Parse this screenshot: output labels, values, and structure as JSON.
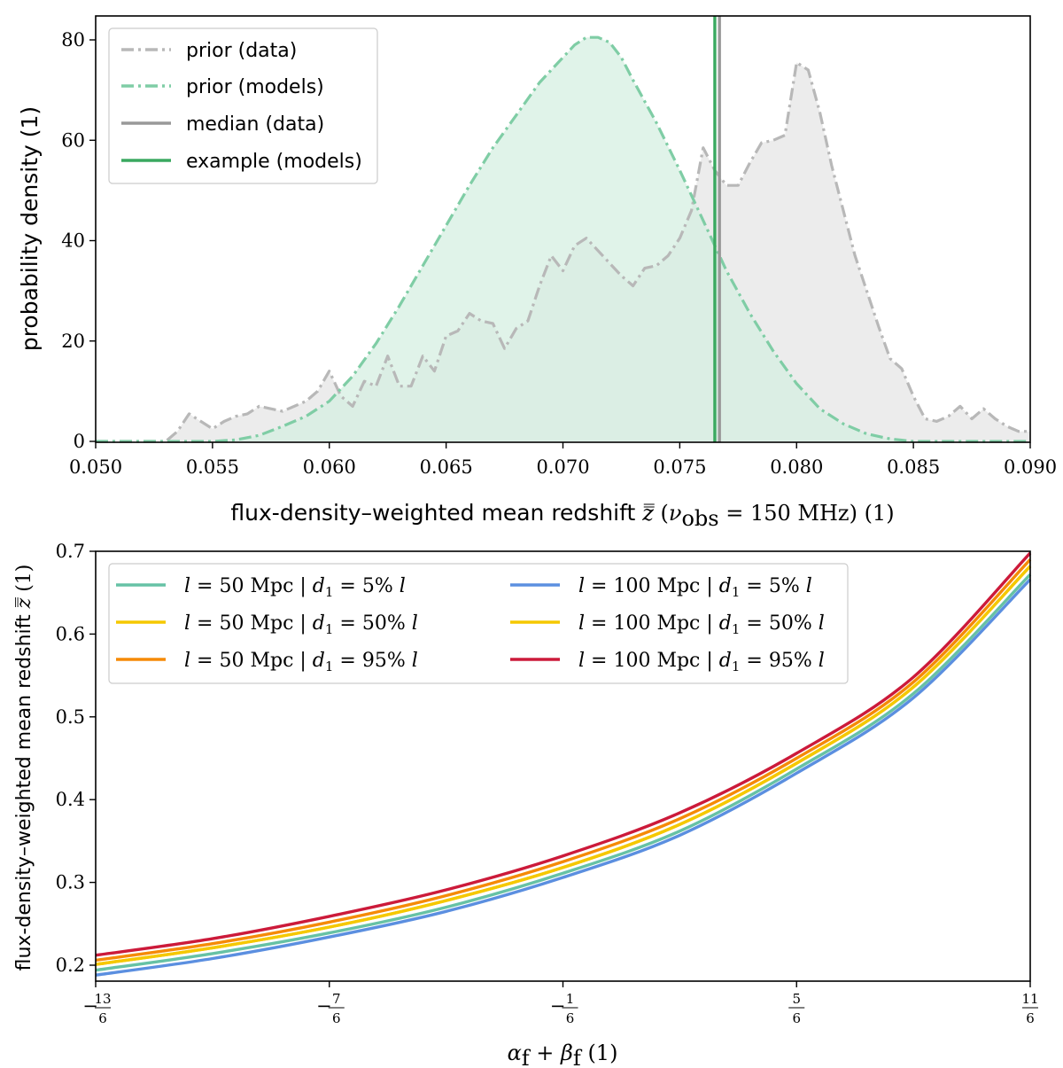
{
  "chart_data": [
    {
      "type": "area",
      "title": "",
      "xlabel": "flux-density–weighted mean redshift z̿ (ν_obs = 150 MHz) (1)",
      "ylabel": "probability density (1)",
      "xlim": [
        0.05,
        0.09
      ],
      "ylim": [
        0,
        85
      ],
      "xticks": [
        0.05,
        0.055,
        0.06,
        0.065,
        0.07,
        0.075,
        0.08,
        0.085,
        0.09
      ],
      "xtick_labels": [
        "0.050",
        "0.055",
        "0.060",
        "0.065",
        "0.070",
        "0.075",
        "0.080",
        "0.085",
        "0.090"
      ],
      "yticks": [
        0,
        20,
        40,
        60,
        80
      ],
      "ytick_labels": [
        "0",
        "20",
        "40",
        "60",
        "80"
      ],
      "legend_position": "top-left",
      "series": [
        {
          "name": "prior (data)",
          "style": "dashdot-filled",
          "color": "#b8b8b8",
          "fill": "#e6e6e6",
          "x": [
            0.05,
            0.053,
            0.0535,
            0.054,
            0.0545,
            0.055,
            0.0555,
            0.056,
            0.0565,
            0.057,
            0.0575,
            0.058,
            0.0585,
            0.059,
            0.0595,
            0.06,
            0.0605,
            0.061,
            0.0615,
            0.062,
            0.0625,
            0.063,
            0.0635,
            0.064,
            0.0645,
            0.065,
            0.0655,
            0.066,
            0.0665,
            0.067,
            0.0675,
            0.068,
            0.0685,
            0.069,
            0.0695,
            0.07,
            0.0705,
            0.071,
            0.0715,
            0.072,
            0.0725,
            0.073,
            0.0735,
            0.074,
            0.0745,
            0.075,
            0.0755,
            0.076,
            0.0765,
            0.077,
            0.0775,
            0.078,
            0.0785,
            0.079,
            0.0795,
            0.08,
            0.0805,
            0.081,
            0.0815,
            0.082,
            0.0825,
            0.083,
            0.0835,
            0.084,
            0.0845,
            0.085,
            0.0855,
            0.086,
            0.0865,
            0.087,
            0.0875,
            0.088,
            0.0885,
            0.089,
            0.0895,
            0.09
          ],
          "y": [
            0,
            0,
            2,
            5.5,
            4,
            2.5,
            4,
            5,
            5.5,
            7,
            6.5,
            6,
            7,
            8,
            10,
            14,
            9,
            7,
            12,
            11,
            17,
            11,
            11,
            17,
            14,
            21,
            22,
            25.5,
            24,
            23.5,
            18.5,
            22.5,
            24,
            31,
            37,
            34,
            39,
            40.5,
            38,
            35.5,
            33,
            31,
            34.5,
            35,
            37,
            40.5,
            46,
            58.5,
            54,
            51,
            51,
            55.5,
            59.5,
            60,
            61,
            75.5,
            74,
            65.5,
            55,
            46,
            37,
            30,
            23,
            16.5,
            14.5,
            9,
            4.5,
            4,
            5,
            7,
            4.5,
            6.5,
            4.5,
            3,
            2,
            2
          ]
        },
        {
          "name": "prior (models)",
          "style": "dashdot-filled",
          "color": "#7fcda5",
          "fill": "#d5efe2",
          "x": [
            0.05,
            0.0525,
            0.055,
            0.056,
            0.057,
            0.058,
            0.059,
            0.06,
            0.061,
            0.062,
            0.063,
            0.064,
            0.065,
            0.066,
            0.067,
            0.068,
            0.069,
            0.07,
            0.0705,
            0.071,
            0.0715,
            0.072,
            0.0725,
            0.073,
            0.074,
            0.075,
            0.076,
            0.077,
            0.078,
            0.079,
            0.08,
            0.081,
            0.082,
            0.083,
            0.084,
            0.085,
            0.086,
            0.0875,
            0.09
          ],
          "y": [
            0,
            0,
            0,
            0.3,
            1.2,
            3,
            5,
            8,
            13,
            19.5,
            27,
            35,
            43,
            51,
            58.5,
            65,
            71.5,
            76.5,
            79,
            80.5,
            80.5,
            79.5,
            76.5,
            72,
            63.5,
            54,
            44,
            34,
            25.5,
            18,
            11.5,
            6.5,
            3.5,
            1.5,
            0.5,
            0,
            0,
            0,
            0
          ]
        },
        {
          "name": "median (data)",
          "style": "vline",
          "color": "#999999",
          "x": 0.0767
        },
        {
          "name": "example (models)",
          "style": "vline",
          "color": "#3aa960",
          "x": 0.0765
        }
      ]
    },
    {
      "type": "line",
      "title": "",
      "xlabel": "α_f + β_f (1)",
      "ylabel": "flux-density–weighted mean redshift z̿ (1)",
      "xlim": [
        -2.1667,
        1.8333
      ],
      "ylim": [
        0.18,
        0.7
      ],
      "xticks": [
        -2.1667,
        -1.1667,
        -0.1667,
        0.8333,
        1.8333
      ],
      "xtick_labels": [
        {
          "sign": "−",
          "num": "13",
          "den": "6"
        },
        {
          "sign": "−",
          "num": "7",
          "den": "6"
        },
        {
          "sign": "−",
          "num": "1",
          "den": "6"
        },
        {
          "sign": "",
          "num": "5",
          "den": "6"
        },
        {
          "sign": "",
          "num": "11",
          "den": "6"
        }
      ],
      "yticks": [
        0.2,
        0.3,
        0.4,
        0.5,
        0.6,
        0.7
      ],
      "ytick_labels": [
        "0.2",
        "0.3",
        "0.4",
        "0.5",
        "0.6",
        "0.7"
      ],
      "legend_position": "top-left",
      "x": [
        -2.1667,
        -1.6667,
        -1.1667,
        -0.6667,
        -0.1667,
        0.3333,
        0.8333,
        1.3333,
        1.8333
      ],
      "series": [
        {
          "name": "l = 50 Mpc | d₁ = 5% l",
          "color": "#66c2a5",
          "values": [
            0.194,
            0.214,
            0.239,
            0.27,
            0.311,
            0.362,
            0.437,
            0.528,
            0.672
          ]
        },
        {
          "name": "l = 50 Mpc | d₁ = 50% l",
          "color": "#f5c800",
          "values": [
            0.201,
            0.221,
            0.246,
            0.278,
            0.318,
            0.37,
            0.444,
            0.536,
            0.682
          ]
        },
        {
          "name": "l = 50 Mpc | d₁ = 95% l",
          "color": "#f58a07",
          "values": [
            0.206,
            0.226,
            0.252,
            0.284,
            0.325,
            0.377,
            0.45,
            0.542,
            0.69
          ]
        },
        {
          "name": "l = 100 Mpc | d₁ = 5% l",
          "color": "#5b8fe0",
          "values": [
            0.188,
            0.208,
            0.234,
            0.265,
            0.306,
            0.357,
            0.432,
            0.523,
            0.666
          ]
        },
        {
          "name": "l = 100 Mpc | d₁ = 50% l",
          "color": "#f5c800",
          "values": [
            0.201,
            0.221,
            0.246,
            0.278,
            0.318,
            0.37,
            0.444,
            0.536,
            0.682
          ]
        },
        {
          "name": "l = 100 Mpc | d₁ = 95% l",
          "color": "#cc1a3a",
          "values": [
            0.212,
            0.232,
            0.259,
            0.291,
            0.332,
            0.384,
            0.456,
            0.548,
            0.698
          ]
        }
      ],
      "legend": [
        {
          "l": "50 Mpc",
          "d": "5%"
        },
        {
          "l": "50 Mpc",
          "d": "50%"
        },
        {
          "l": "50 Mpc",
          "d": "95%"
        },
        {
          "l": "100 Mpc",
          "d": "5%"
        },
        {
          "l": "100 Mpc",
          "d": "50%"
        },
        {
          "l": "100 Mpc",
          "d": "95%"
        }
      ]
    }
  ]
}
